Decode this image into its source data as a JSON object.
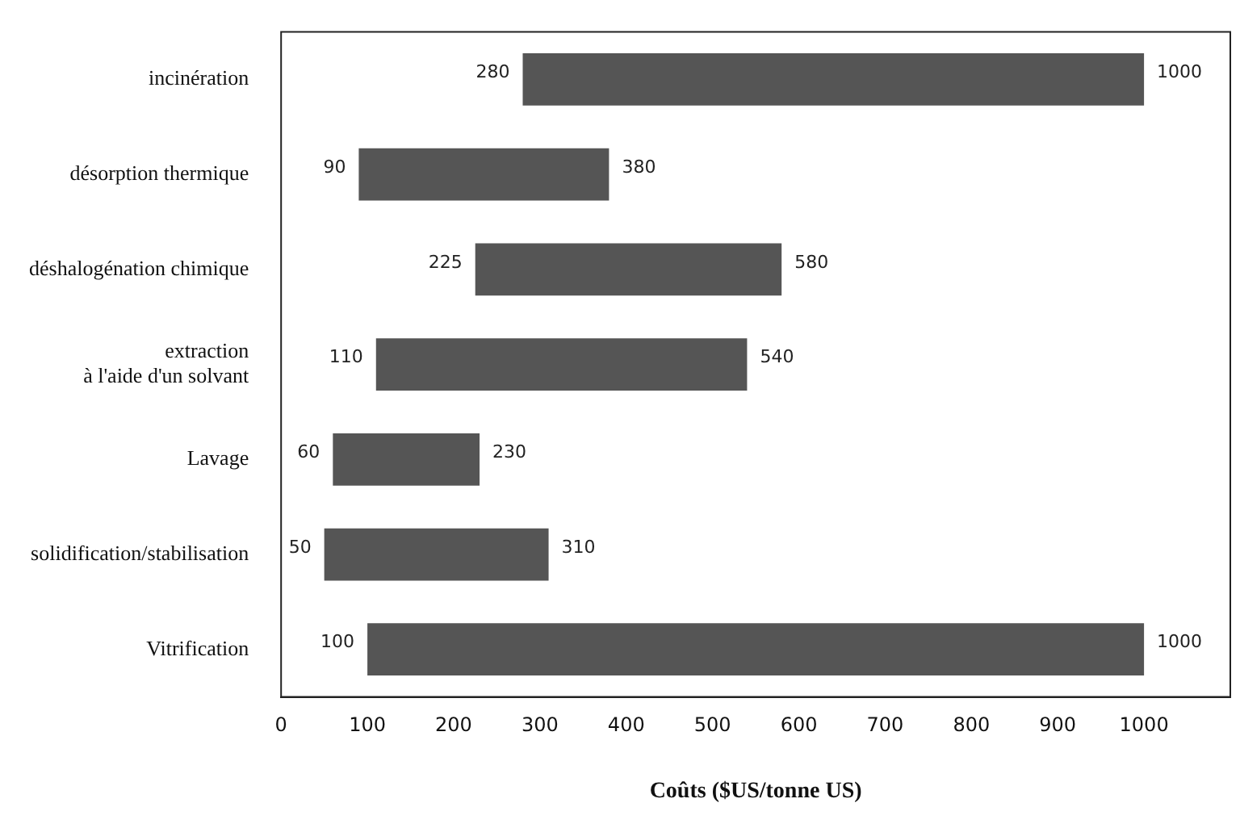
{
  "chart_data": {
    "type": "bar",
    "orientation": "horizontal",
    "categories": [
      "incinération",
      "désorption thermique",
      "déshalogénation chimique",
      "extraction\nà l'aide d'un solvant",
      "Lavage",
      "solidification/stabilisation",
      "Vitrification"
    ],
    "base": [
      280,
      90,
      225,
      110,
      60,
      50,
      100
    ],
    "values": [
      720,
      290,
      355,
      430,
      170,
      260,
      900
    ],
    "color": "#555555",
    "xlim": [
      0,
      1100
    ],
    "xticks": [
      0,
      100,
      200,
      300,
      400,
      500,
      600,
      700,
      800,
      900,
      1000
    ],
    "xlabel": "Coûts ($US/tonne US)",
    "grid": false,
    "legend": false,
    "annotations": [
      {
        "text": "280",
        "x": 280,
        "y": "incinération"
      },
      {
        "text": "1000",
        "x": 1000,
        "y": "incinération"
      },
      {
        "text": "90",
        "x": 90,
        "y": "désorption thermique"
      },
      {
        "text": "380",
        "x": 380,
        "y": "désorption thermique"
      },
      {
        "text": "225",
        "x": 225,
        "y": "déshalogénation chimique"
      },
      {
        "text": "580",
        "x": 580,
        "y": "déshalogénation chimique"
      },
      {
        "text": "110",
        "x": 110,
        "y": "extraction\nà l'aide d'un solvant"
      },
      {
        "text": "540",
        "x": 540,
        "y": "extraction\nà l'aide d'un solvant"
      },
      {
        "text": "60",
        "x": 60,
        "y": "Lavage"
      },
      {
        "text": "230",
        "x": 230,
        "y": "Lavage"
      },
      {
        "text": "50",
        "x": 50,
        "y": "solidification/stabilisation"
      },
      {
        "text": "310",
        "x": 310,
        "y": "solidification/stabilisation"
      },
      {
        "text": "100",
        "x": 100,
        "y": "Vitrification"
      },
      {
        "text": "1000",
        "x": 1000,
        "y": "Vitrification"
      }
    ]
  }
}
